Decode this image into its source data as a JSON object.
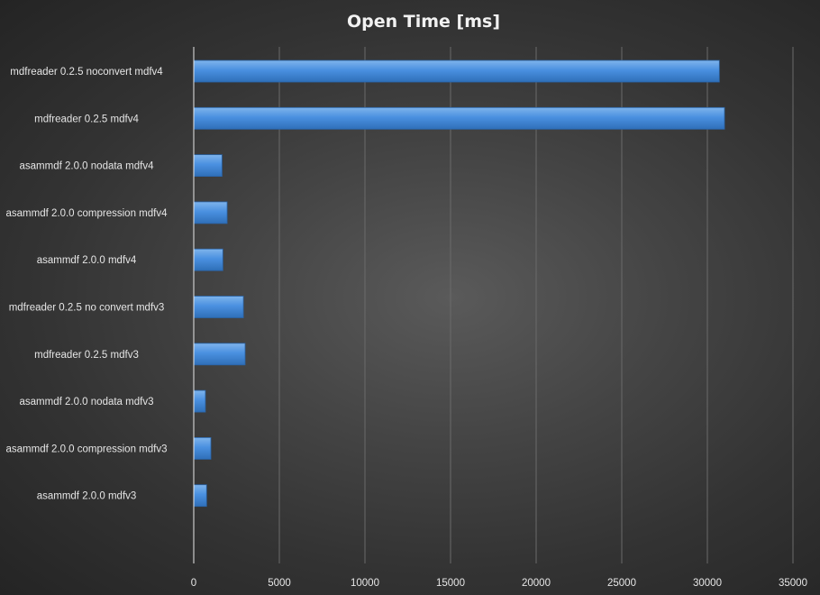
{
  "chart_data": {
    "type": "bar",
    "orientation": "horizontal",
    "title": "Open Time [ms]",
    "xlabel": "",
    "ylabel": "",
    "categories": [
      "mdfreader 0.2.5 noconvert mdfv4",
      "mdfreader 0.2.5 mdfv4",
      "asammdf 2.0.0 nodata mdfv4",
      "asammdf 2.0.0 compression mdfv4",
      "asammdf 2.0.0 mdfv4",
      "mdfreader 0.2.5 no convert mdfv3",
      "mdfreader 0.2.5 mdfv3",
      "asammdf 2.0.0 nodata mdfv3",
      "asammdf 2.0.0 compression mdfv3",
      "asammdf 2.0.0 mdfv3"
    ],
    "values": [
      30700,
      31000,
      1650,
      1950,
      1700,
      2900,
      3000,
      680,
      1000,
      750
    ],
    "xlim": [
      0,
      35000
    ],
    "xticks": [
      "0",
      "5000",
      "10000",
      "15000",
      "20000",
      "25000",
      "30000",
      "35000"
    ],
    "grid": true,
    "legend": "none",
    "colors": {
      "bar_top": "#7fb4ec",
      "bar_mid": "#4a90e0",
      "bar_bottom": "#2f6fb8",
      "bar_stroke": "#2a64a8"
    }
  }
}
